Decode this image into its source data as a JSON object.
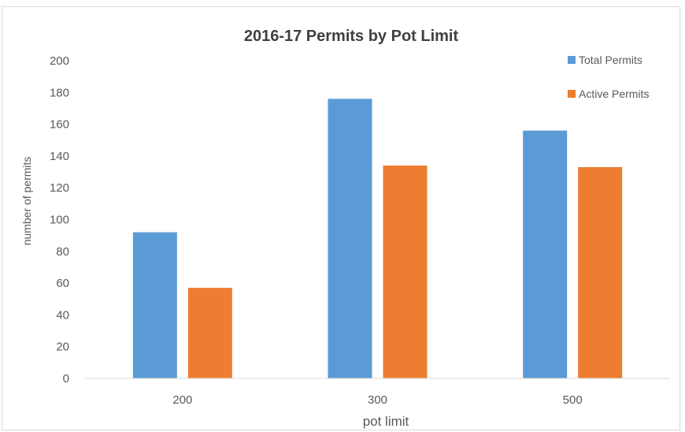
{
  "chart_data": {
    "type": "bar",
    "title": "2016-17 Permits by Pot Limit",
    "xlabel": "pot limit",
    "ylabel": "number of permits",
    "categories": [
      "200",
      "300",
      "500"
    ],
    "series": [
      {
        "name": "Total Permits",
        "values": [
          92,
          176,
          156
        ],
        "color": "#5b9bd5"
      },
      {
        "name": "Active Permits",
        "values": [
          57,
          134,
          133
        ],
        "color": "#ed7d31"
      }
    ],
    "ylim": [
      0,
      200
    ],
    "yticks": [
      0,
      20,
      40,
      60,
      80,
      100,
      120,
      140,
      160,
      180,
      200
    ],
    "grid": false,
    "legend_position": "top-right"
  }
}
